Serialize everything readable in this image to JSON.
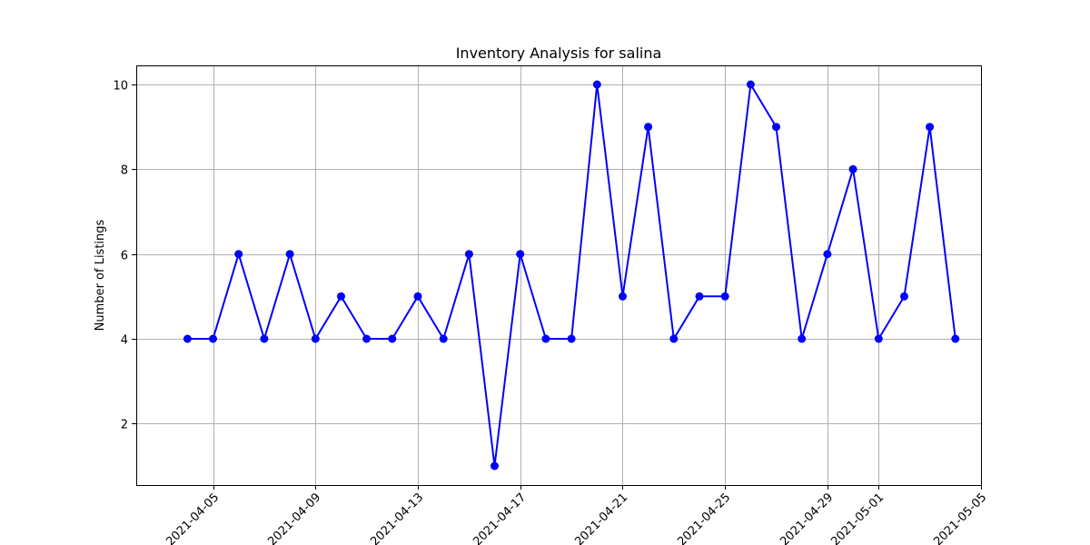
{
  "chart_data": {
    "type": "line",
    "title": "Inventory Analysis for salina",
    "xlabel": "",
    "ylabel": "Number of Listings",
    "x_ticks": [
      "2021-04-05",
      "2021-04-09",
      "2021-04-13",
      "2021-04-17",
      "2021-04-21",
      "2021-04-25",
      "2021-04-29",
      "2021-05-01",
      "2021-05-05"
    ],
    "y_ticks": [
      "2",
      "4",
      "6",
      "8",
      "10"
    ],
    "xlim": [
      "2021-04-02",
      "2021-05-05"
    ],
    "ylim": [
      0.55,
      10.45
    ],
    "grid": true,
    "color": "#0000ff",
    "marker": "circle",
    "x": [
      "2021-04-04",
      "2021-04-05",
      "2021-04-06",
      "2021-04-07",
      "2021-04-08",
      "2021-04-09",
      "2021-04-10",
      "2021-04-11",
      "2021-04-12",
      "2021-04-13",
      "2021-04-14",
      "2021-04-15",
      "2021-04-16",
      "2021-04-17",
      "2021-04-18",
      "2021-04-19",
      "2021-04-20",
      "2021-04-21",
      "2021-04-22",
      "2021-04-23",
      "2021-04-24",
      "2021-04-25",
      "2021-04-26",
      "2021-04-27",
      "2021-04-28",
      "2021-04-29",
      "2021-04-30",
      "2021-05-01",
      "2021-05-02",
      "2021-05-03",
      "2021-05-04"
    ],
    "y": [
      4,
      4,
      6,
      4,
      6,
      4,
      5,
      4,
      4,
      5,
      4,
      6,
      1,
      6,
      4,
      4,
      10,
      5,
      9,
      4,
      5,
      5,
      10,
      9,
      4,
      6,
      8,
      4,
      5,
      9,
      4
    ]
  }
}
